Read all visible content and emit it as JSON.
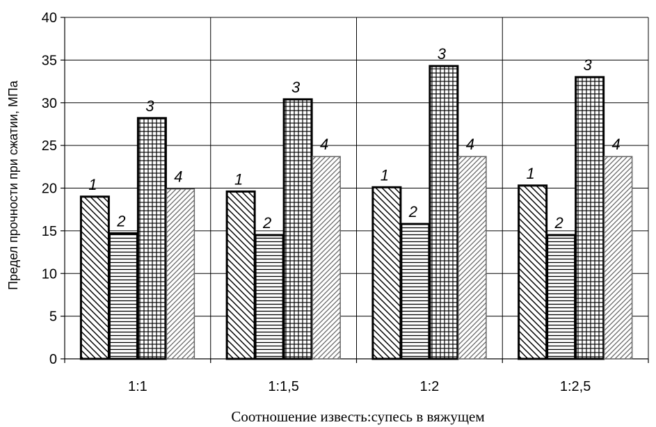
{
  "chart_data": {
    "type": "bar",
    "categories": [
      "1:1",
      "1:1,5",
      "1:2",
      "1:2,5"
    ],
    "series": [
      {
        "label": "1",
        "values": [
          19.0,
          19.6,
          20.1,
          20.3
        ]
      },
      {
        "label": "2",
        "values": [
          14.7,
          14.5,
          15.8,
          14.5
        ]
      },
      {
        "label": "3",
        "values": [
          28.2,
          30.4,
          34.3,
          33.0
        ]
      },
      {
        "label": "4",
        "values": [
          19.9,
          23.7,
          23.7,
          23.7
        ]
      }
    ],
    "ylim": [
      0,
      40
    ],
    "yticks": [
      0,
      5,
      10,
      15,
      20,
      25,
      30,
      35,
      40
    ],
    "ylabel": "Предел прочности при сжатии, МПа",
    "xlabel": "Соотношение известь:супесь в вяжущем",
    "grid": true
  }
}
